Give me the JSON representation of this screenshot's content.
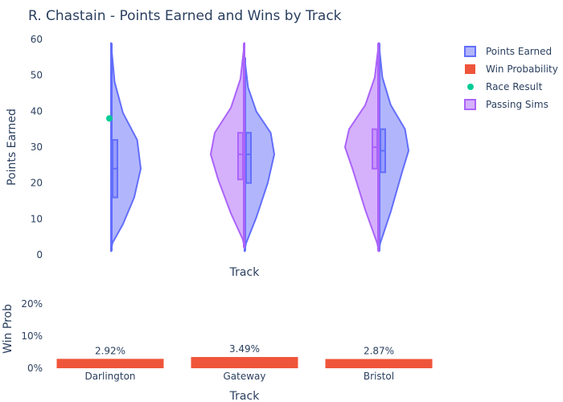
{
  "chart_data": [
    {
      "type": "violin",
      "title": "R. Chastain - Points Earned and Wins by Track",
      "xlabel": "Track",
      "ylabel": "Points Earned",
      "categories": [
        "Darlington",
        "Gateway",
        "Bristol"
      ],
      "ylim": [
        0,
        60
      ],
      "yticks": [
        0,
        10,
        20,
        30,
        40,
        50,
        60
      ],
      "grid": false,
      "legend_position": "top-right",
      "legend": [
        "Points Earned",
        "Win Probability",
        "Race Result",
        "Passing Sims"
      ],
      "series": [
        {
          "name": "Points Earned",
          "side": "right",
          "color": "#636efa",
          "distributions": [
            {
              "category": "Darlington",
              "min": 1,
              "q1": 16,
              "median": 24,
              "q3": 32,
              "max": 59
            },
            {
              "category": "Gateway",
              "min": 1,
              "q1": 20,
              "median": 28,
              "q3": 34,
              "max": 55
            },
            {
              "category": "Bristol",
              "min": 1,
              "q1": 23,
              "median": 29,
              "q3": 35,
              "max": 59
            }
          ]
        },
        {
          "name": "Passing Sims",
          "side": "left",
          "color": "#ab63fa",
          "distributions": [
            {
              "category": "Gateway",
              "min": 2,
              "q1": 21,
              "median": 28,
              "q3": 34,
              "max": 59
            },
            {
              "category": "Bristol",
              "min": 1,
              "q1": 24,
              "median": 30,
              "q3": 35,
              "max": 59
            }
          ]
        },
        {
          "name": "Race Result",
          "type": "scatter",
          "color": "#00cc96",
          "points": [
            {
              "category": "Darlington",
              "y": 38
            }
          ]
        }
      ]
    },
    {
      "type": "bar",
      "name": "Win Probability",
      "xlabel": "Track",
      "ylabel": "Win Prob",
      "categories": [
        "Darlington",
        "Gateway",
        "Bristol"
      ],
      "values": [
        0.0292,
        0.0349,
        0.0287
      ],
      "labels": [
        "2.92%",
        "3.49%",
        "2.87%"
      ],
      "ylim": [
        0,
        0.25
      ],
      "yticks": [
        0,
        0.1,
        0.2
      ],
      "ytick_labels": [
        "0%",
        "10%",
        "20%"
      ],
      "color": "#ef553b"
    }
  ]
}
